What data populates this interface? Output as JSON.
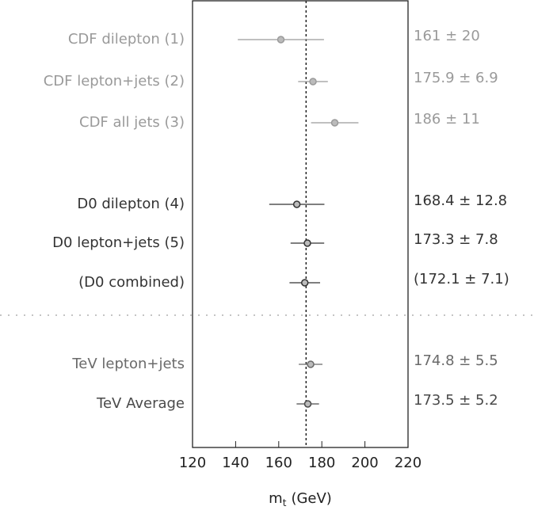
{
  "chart_data": {
    "type": "errorbar",
    "categories": [
      "CDF dilepton (1)",
      "CDF lepton+jets (2)",
      "CDF all jets (3)",
      "D0 dilepton (4)",
      "D0 lepton+jets (5)",
      "(D0 combined)",
      "TeV lepton+jets",
      "TeV Average"
    ],
    "values": [
      161,
      175.9,
      186,
      168.4,
      173.3,
      172.1,
      174.8,
      173.5
    ],
    "errors": [
      20,
      6.9,
      11,
      12.8,
      7.8,
      7.1,
      5.5,
      5.2
    ],
    "value_labels": [
      "161 ± 20",
      "175.9 ± 6.9",
      "186 ± 11",
      "168.4 ± 12.8",
      "173.3 ± 7.8",
      "(172.1 ± 7.1)",
      "174.8 ± 5.5",
      "173.5 ± 5.2"
    ],
    "colors": [
      "#9a9a9a",
      "#9a9a9a",
      "#9a9a9a",
      "#333333",
      "#333333",
      "#333333",
      "#6a6a6a",
      "#4a4a4a"
    ],
    "reference_line": 172.7,
    "xlim": [
      120,
      220
    ],
    "xticks": [
      120,
      140,
      160,
      180,
      200,
      220
    ],
    "xlabel": {
      "base": "m",
      "subscript": "t",
      "unit": "(GeV)"
    }
  }
}
